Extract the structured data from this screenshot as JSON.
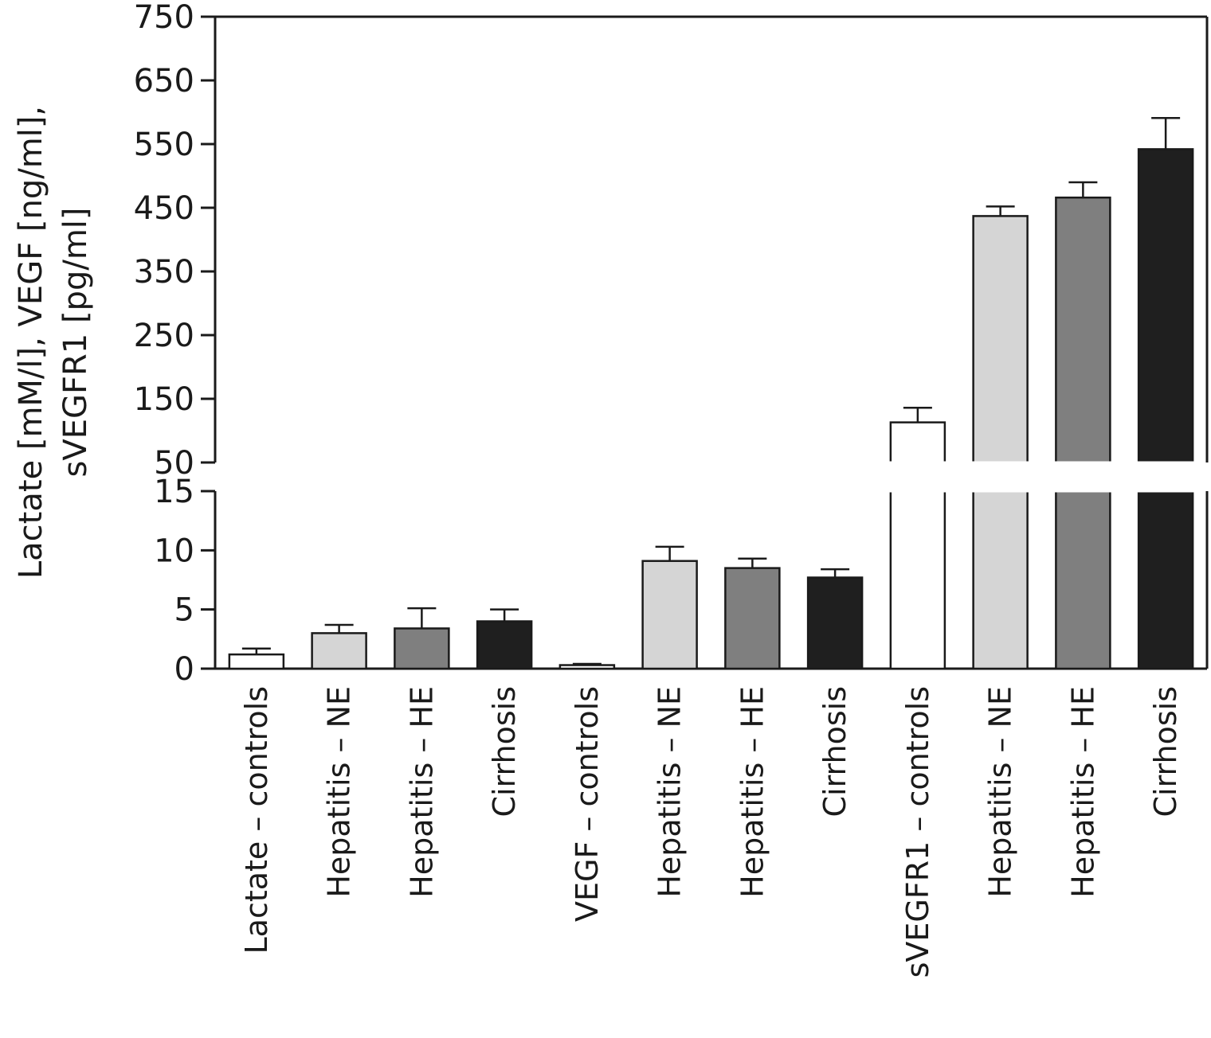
{
  "chart_data": {
    "type": "bar",
    "ylabel_lines": [
      "Lactate [mM/l], VEGF [ng/ml],",
      "sVEGFR1 [pg/ml]"
    ],
    "axis_break": true,
    "lower_ylim": [
      0,
      15
    ],
    "lower_ticks": [
      "0",
      "5",
      "10",
      "15"
    ],
    "upper_ylim": [
      50,
      750
    ],
    "upper_ticks": [
      "50",
      "150",
      "250",
      "350",
      "450",
      "550",
      "650",
      "750"
    ],
    "grid": false,
    "legend": "none",
    "categories": [
      "Lactate – controls",
      "Hepatitis – NE",
      "Hepatitis – HE",
      "Cirrhosis",
      "VEGF – controls",
      "Hepatitis – NE",
      "Hepatitis – HE",
      "Cirrhosis",
      "sVEGFR1 – controls",
      "Hepatitis – NE",
      "Hepatitis – HE",
      "Cirrhosis"
    ],
    "values": [
      1.2,
      3.0,
      3.4,
      4.0,
      0.3,
      9.1,
      8.5,
      7.7,
      113,
      437,
      466,
      542
    ],
    "errors": [
      0.5,
      0.7,
      1.7,
      1.0,
      0.1,
      1.2,
      0.8,
      0.7,
      23,
      15,
      24,
      49
    ],
    "fills": [
      "#ffffff",
      "#d5d5d5",
      "#7f7f7f",
      "#1f1f1f",
      "#ffffff",
      "#d5d5d5",
      "#7f7f7f",
      "#1f1f1f",
      "#ffffff",
      "#d5d5d5",
      "#7f7f7f",
      "#1f1f1f"
    ]
  }
}
